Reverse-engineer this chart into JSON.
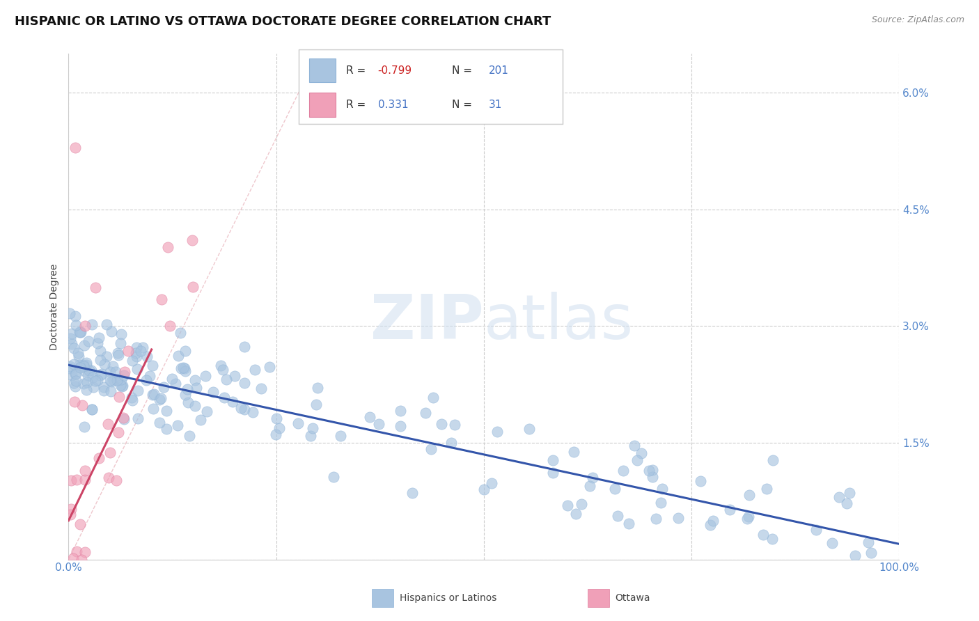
{
  "title": "HISPANIC OR LATINO VS OTTAWA DOCTORATE DEGREE CORRELATION CHART",
  "source_text": "Source: ZipAtlas.com",
  "xlabel": "",
  "ylabel": "Doctorate Degree",
  "xmin": 0.0,
  "xmax": 100.0,
  "ymin": 0.0,
  "ymax": 6.5,
  "yticks": [
    0.0,
    1.5,
    3.0,
    4.5,
    6.0
  ],
  "ytick_labels_right": [
    "",
    "1.5%",
    "3.0%",
    "4.5%",
    "6.0%"
  ],
  "xticks": [
    0.0,
    25.0,
    50.0,
    75.0,
    100.0
  ],
  "xtick_labels": [
    "0.0%",
    "",
    "",
    "",
    "100.0%"
  ],
  "blue_R": -0.799,
  "blue_N": 201,
  "pink_R": 0.331,
  "pink_N": 31,
  "blue_color": "#a8c4e0",
  "pink_color": "#f0a0b8",
  "blue_line_color": "#3355aa",
  "pink_line_color": "#cc4466",
  "diag_line_color": "#ddaaaa",
  "background_color": "#ffffff",
  "grid_color": "#cccccc",
  "watermark_text": "ZIPatlas",
  "tick_label_color": "#5588cc",
  "title_fontsize": 13,
  "axis_label_fontsize": 10,
  "tick_fontsize": 11,
  "blue_intercept": 2.5,
  "blue_slope": -0.023,
  "pink_intercept": 0.5,
  "pink_slope": 0.22
}
